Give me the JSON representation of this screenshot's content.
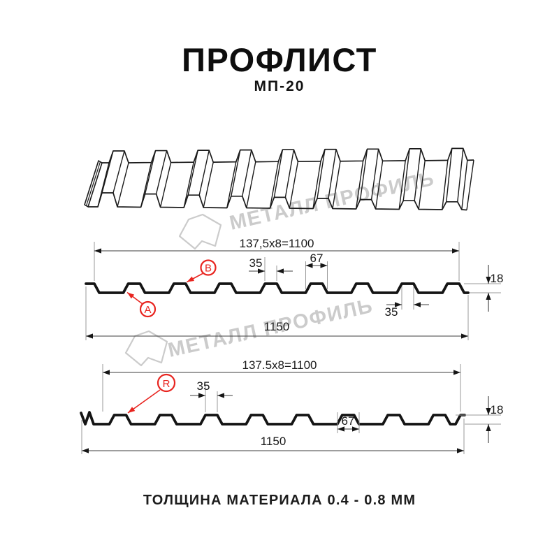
{
  "header": {
    "title": "ПРОФЛИСТ",
    "subtitle": "МП-20"
  },
  "footer": {
    "note": "ТОЛЩИНА МАТЕРИАЛА 0.4 - 0.8 ММ"
  },
  "watermark": {
    "text": "МЕТАЛЛ ПРОФИЛЬ",
    "logo": "metall-profil-logo"
  },
  "colors": {
    "accent_red": "#e8241f",
    "line": "#1a1a1a",
    "dim_line": "#3c3c3c",
    "ext_line": "#9a9a9a",
    "watermark": "#c6c6c6"
  },
  "diagram_top": {
    "dim_total": "137,5x8=1100",
    "dim_overall": "1150",
    "dim_crest": "35",
    "dim_base": "67",
    "dim_height": "18",
    "dim_crest_bottom": "35",
    "marker_a": "A",
    "marker_b": "B"
  },
  "diagram_bottom": {
    "dim_total": "137.5x8=1100",
    "dim_overall": "1150",
    "dim_crest": "35",
    "dim_base": "67",
    "dim_height": "18",
    "marker_r": "R"
  }
}
